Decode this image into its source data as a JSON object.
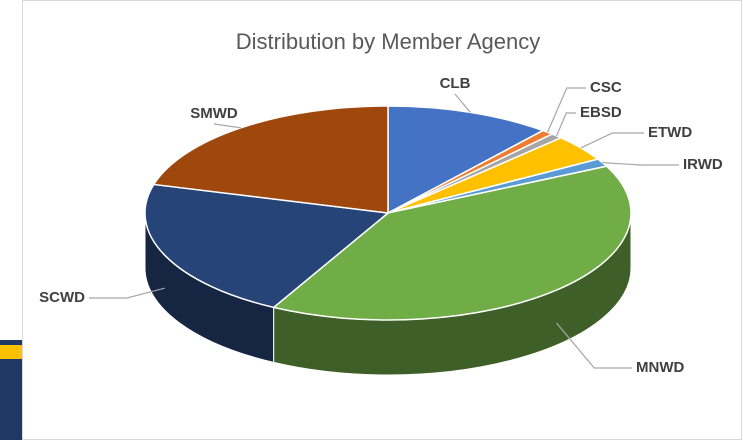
{
  "chart_data": {
    "type": "pie",
    "title": "Distribution by Member Agency",
    "categories": [
      "CLB",
      "CSC",
      "EBSD",
      "ETWD",
      "IRWD",
      "MNWD",
      "SCWD",
      "SMWD"
    ],
    "values": [
      11,
      0.8,
      0.8,
      4,
      1.2,
      40,
      21.5,
      20.7
    ],
    "colors": [
      "#4472c4",
      "#ed7d31",
      "#a5a5a5",
      "#ffc000",
      "#5b9bd5",
      "#70ad47",
      "#264478",
      "#9e480e"
    ],
    "three_d": true
  }
}
